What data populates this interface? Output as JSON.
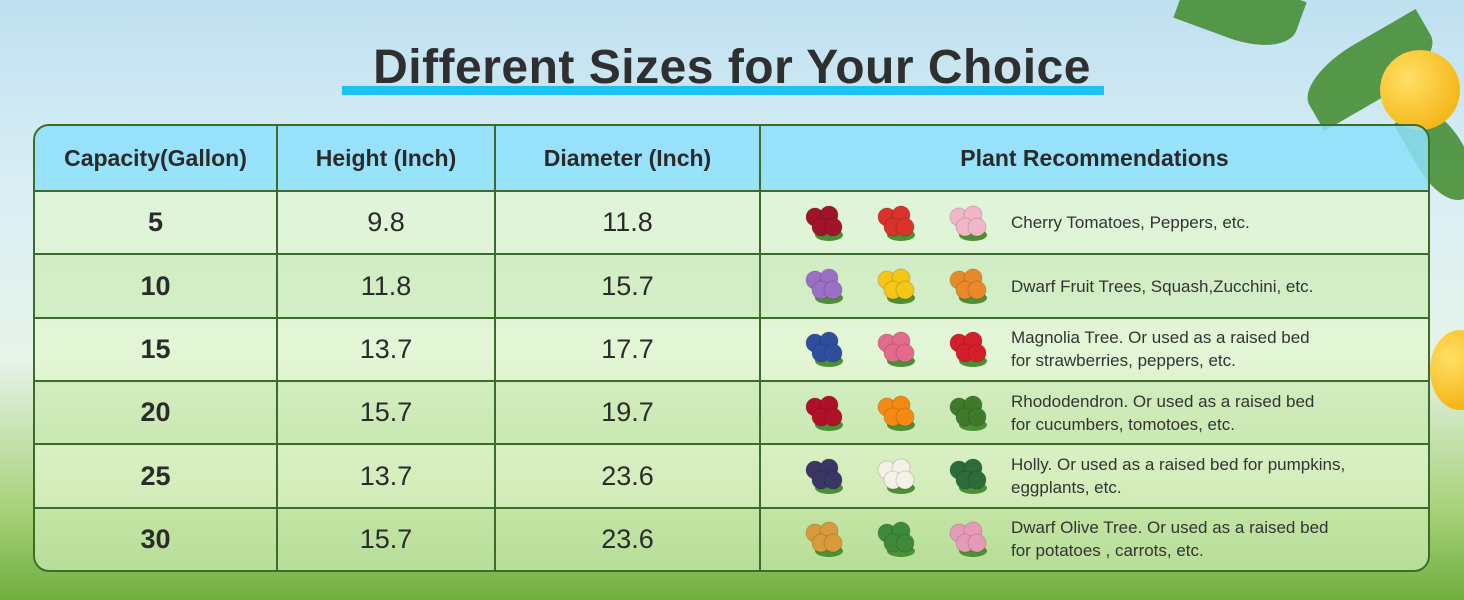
{
  "title": "Different Sizes for Your Choice",
  "table": {
    "header": [
      "Capacity(Gallon)",
      "Height (Inch)",
      "Diameter (Inch)",
      "Plant Recommendations"
    ],
    "rows": [
      [
        "5",
        "9.8",
        "11.8",
        [
          "Cherry Tomatoes, Peppers, etc."
        ]
      ],
      [
        "10",
        "11.8",
        "15.7",
        [
          "Dwarf Fruit Trees, Squash,Zucchini, etc."
        ]
      ],
      [
        "15",
        "13.7",
        "17.7",
        [
          "Magnolia Tree. Or used as a raised bed",
          "for strawberries, peppers, etc."
        ]
      ],
      [
        "20",
        "15.7",
        "19.7",
        [
          "Rhododendron. Or used as a raised bed",
          "for cucumbers, tomotoes, etc."
        ]
      ],
      [
        "25",
        "13.7",
        "23.6",
        [
          "Holly. Or used as a raised bed for pumpkins,",
          "eggplants, etc."
        ]
      ],
      [
        "30",
        "15.7",
        "23.6",
        [
          "Dwarf Olive Tree. Or used as a raised bed",
          "for potatoes , carrots, etc."
        ]
      ]
    ]
  }
}
